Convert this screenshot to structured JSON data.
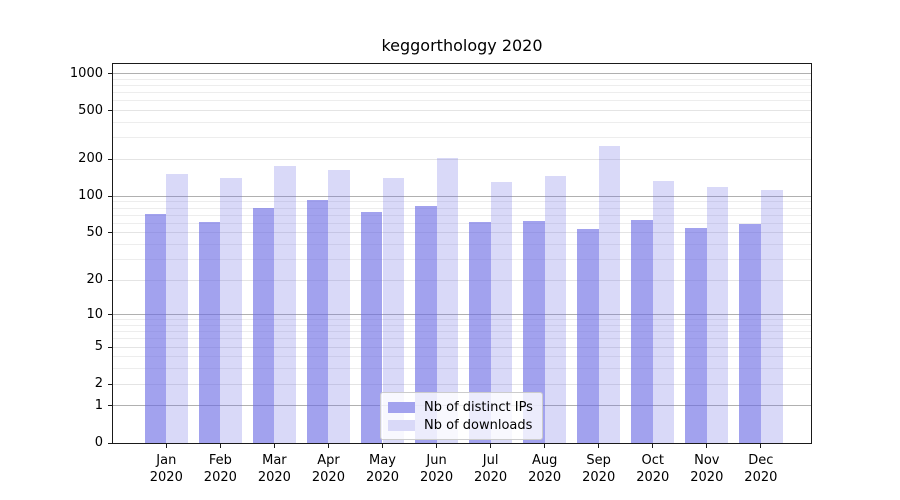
{
  "title": "keggorthology 2020",
  "colors": {
    "bar_base": "#6969e4",
    "bar_dark_rgba": "rgba(105,105,228,0.62)",
    "bar_light_rgba": "rgba(105,105,228,0.25)",
    "legend_swatch_dark": "#a2a2ee",
    "legend_swatch_light": "#d9d9f8",
    "grid_major": "#b0b0b0",
    "grid_mid": "#e4e4e4",
    "grid_minor": "#ededed",
    "axis": "#1a1a1a"
  },
  "legend": {
    "items": [
      {
        "label": "Nb of distinct IPs",
        "swatch": "#a2a2ee"
      },
      {
        "label": "Nb of downloads",
        "swatch": "#d9d9f8"
      }
    ]
  },
  "axes": {
    "y_tick_values": [
      1000,
      500,
      200,
      100,
      50,
      20,
      10,
      5,
      2,
      1,
      0
    ],
    "y_tick_labels": [
      "1000",
      "500",
      "200",
      "100",
      "50",
      "20",
      "10",
      "5",
      "2",
      "1",
      "0"
    ],
    "x_months": [
      "Jan",
      "Feb",
      "Mar",
      "Apr",
      "May",
      "Jun",
      "Jul",
      "Aug",
      "Sep",
      "Oct",
      "Nov",
      "Dec"
    ],
    "x_year": "2020"
  },
  "chart_data": {
    "type": "bar",
    "title": "keggorthology 2020",
    "categories": [
      "Jan 2020",
      "Feb 2020",
      "Mar 2020",
      "Apr 2020",
      "May 2020",
      "Jun 2020",
      "Jul 2020",
      "Aug 2020",
      "Sep 2020",
      "Oct 2020",
      "Nov 2020",
      "Dec 2020"
    ],
    "series": [
      {
        "name": "Nb of distinct IPs",
        "values": [
          71,
          61,
          80,
          93,
          74,
          83,
          61,
          63,
          54,
          64,
          55,
          59
        ]
      },
      {
        "name": "Nb of downloads",
        "values": [
          153,
          142,
          176,
          164,
          141,
          205,
          130,
          146,
          260,
          133,
          119,
          112
        ]
      }
    ],
    "yscale": "log1p",
    "ylim": [
      0,
      1230
    ],
    "y_ticks": [
      0,
      1,
      2,
      5,
      10,
      20,
      50,
      100,
      200,
      500,
      1000
    ],
    "grid": true,
    "legend_position": "lower center"
  }
}
